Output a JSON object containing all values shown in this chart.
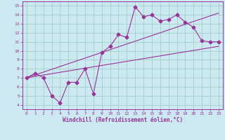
{
  "title": "",
  "xlabel": "Windchill (Refroidissement éolien,°C)",
  "ylabel": "",
  "bg_color": "#cce8f0",
  "line_color": "#993399",
  "grid_color": "#99ccbb",
  "xlim": [
    -0.5,
    23.5
  ],
  "ylim": [
    3.5,
    15.5
  ],
  "xticks": [
    0,
    1,
    2,
    3,
    4,
    5,
    6,
    7,
    8,
    9,
    10,
    11,
    12,
    13,
    14,
    15,
    16,
    17,
    18,
    19,
    20,
    21,
    22,
    23
  ],
  "yticks": [
    4,
    5,
    6,
    7,
    8,
    9,
    10,
    11,
    12,
    13,
    14,
    15
  ],
  "line1_x": [
    0,
    1,
    2,
    3,
    4,
    5,
    6,
    7,
    8,
    9,
    10,
    11,
    12,
    13,
    14,
    15,
    16,
    17,
    18,
    19,
    20,
    21,
    22,
    23
  ],
  "line1_y": [
    7.0,
    7.5,
    7.0,
    5.0,
    4.2,
    6.5,
    6.5,
    8.0,
    5.2,
    9.8,
    10.5,
    11.8,
    11.5,
    14.9,
    13.8,
    14.0,
    13.3,
    13.5,
    14.0,
    13.2,
    12.6,
    11.1,
    11.0,
    11.0
  ],
  "line2_x": [
    0,
    23
  ],
  "line2_y": [
    7.0,
    10.5
  ],
  "line3_x": [
    0,
    23
  ],
  "line3_y": [
    7.0,
    14.2
  ]
}
